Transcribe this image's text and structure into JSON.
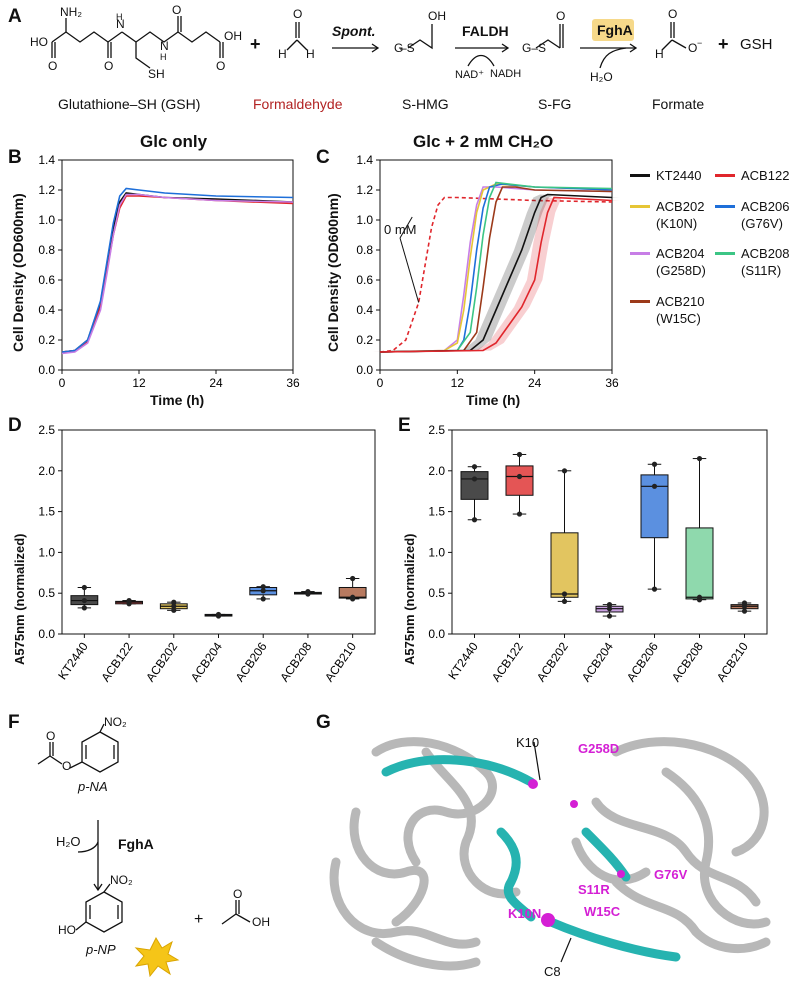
{
  "panels": {
    "A": "A",
    "B": "B",
    "C": "C",
    "D": "D",
    "E": "E",
    "F": "F",
    "G": "G"
  },
  "scheme": {
    "gsh_label": "Glutathione–SH (GSH)",
    "formaldehyde_label": "Formaldehyde",
    "shmg_label": "S-HMG",
    "sfg_label": "S-FG",
    "formate_label": "Formate",
    "spont": "Spont.",
    "faldh": "FALDH",
    "fgha": "FghA",
    "nad": "NAD⁺",
    "nadh": "NADH",
    "h2o": "H₂O",
    "plus": "+",
    "gsh_short": "GSH",
    "formaldehyde_color": "#b22222",
    "fgha_highlight": "#f6d98a"
  },
  "growth_titles": {
    "B": "Glc only",
    "C": "Glc + 2 mM CH₂O"
  },
  "growth_axes": {
    "ylabel": "Cell Density (OD600nm)",
    "xlabel": "Time (h)",
    "zero_mm": "0 mM",
    "yticks": [
      "0.0",
      "0.2",
      "0.4",
      "0.6",
      "0.8",
      "1.0",
      "1.2",
      "1.4"
    ],
    "xticks": [
      "0",
      "12",
      "24",
      "36"
    ]
  },
  "legend": [
    {
      "name": "KT2440",
      "sub": "",
      "color": "#111111"
    },
    {
      "name": "ACB122",
      "sub": "",
      "color": "#e0262c"
    },
    {
      "name": "ACB202",
      "sub": "(K10N)",
      "color": "#e6c535"
    },
    {
      "name": "ACB206",
      "sub": "(G76V)",
      "color": "#1e6fd9"
    },
    {
      "name": "ACB204",
      "sub": "(G258D)",
      "color": "#c77ee6"
    },
    {
      "name": "ACB208",
      "sub": "(S11R)",
      "color": "#3cc585"
    },
    {
      "name": "ACB210",
      "sub": "(W15C)",
      "color": "#9c3a1a"
    }
  ],
  "chart_data": [
    {
      "panel": "B",
      "type": "line",
      "title": "Glc only",
      "xlabel": "Time (h)",
      "ylabel": "Cell Density (OD600nm)",
      "xlim": [
        0,
        36
      ],
      "ylim": [
        0,
        1.4
      ],
      "series": [
        {
          "name": "KT2440",
          "x": [
            0,
            2,
            4,
            6,
            7,
            8,
            9,
            10,
            12,
            16,
            24,
            36
          ],
          "y": [
            0.12,
            0.13,
            0.2,
            0.45,
            0.7,
            0.95,
            1.12,
            1.18,
            1.17,
            1.15,
            1.14,
            1.12
          ]
        },
        {
          "name": "ACB122",
          "x": [
            0,
            2,
            4,
            6,
            7,
            8,
            9,
            10,
            12,
            16,
            24,
            36
          ],
          "y": [
            0.12,
            0.13,
            0.19,
            0.42,
            0.66,
            0.9,
            1.08,
            1.16,
            1.16,
            1.15,
            1.13,
            1.11
          ]
        },
        {
          "name": "ACB206",
          "x": [
            0,
            2,
            4,
            6,
            7,
            8,
            9,
            10,
            12,
            16,
            24,
            36
          ],
          "y": [
            0.12,
            0.13,
            0.2,
            0.46,
            0.72,
            0.98,
            1.16,
            1.21,
            1.2,
            1.18,
            1.16,
            1.15
          ]
        },
        {
          "name": "ACB204",
          "x": [
            0,
            2,
            4,
            6,
            7,
            8,
            9,
            10,
            12,
            16,
            24,
            36
          ],
          "y": [
            0.11,
            0.12,
            0.18,
            0.4,
            0.64,
            0.9,
            1.1,
            1.17,
            1.17,
            1.15,
            1.13,
            1.12
          ]
        }
      ]
    },
    {
      "panel": "C",
      "type": "line",
      "title": "Glc + 2 mM CH₂O",
      "xlabel": "Time (h)",
      "ylabel": "Cell Density (OD600nm)",
      "xlim": [
        0,
        36
      ],
      "ylim": [
        0,
        1.4
      ],
      "series": [
        {
          "name": "0 mM",
          "x": [
            0,
            2,
            4,
            6,
            7,
            8,
            9,
            10,
            12,
            24,
            36
          ],
          "y": [
            0.12,
            0.13,
            0.2,
            0.45,
            0.7,
            0.95,
            1.1,
            1.15,
            1.15,
            1.13,
            1.12
          ]
        },
        {
          "name": "ACB204",
          "x": [
            0,
            10,
            12,
            13,
            14,
            15,
            16,
            18,
            24,
            36
          ],
          "y": [
            0.12,
            0.13,
            0.2,
            0.5,
            0.85,
            1.1,
            1.22,
            1.22,
            1.2,
            1.19
          ]
        },
        {
          "name": "ACB202",
          "x": [
            0,
            10,
            12,
            13,
            14,
            15,
            16,
            18,
            24,
            36
          ],
          "y": [
            0.12,
            0.13,
            0.18,
            0.4,
            0.75,
            1.05,
            1.2,
            1.24,
            1.22,
            1.2
          ]
        },
        {
          "name": "ACB206",
          "x": [
            0,
            12,
            13,
            14,
            15,
            16,
            17,
            19,
            24,
            36
          ],
          "y": [
            0.12,
            0.13,
            0.2,
            0.45,
            0.8,
            1.08,
            1.22,
            1.24,
            1.22,
            1.2
          ]
        },
        {
          "name": "ACB208",
          "x": [
            0,
            12,
            14,
            15,
            16,
            17,
            18,
            20,
            24,
            36
          ],
          "y": [
            0.12,
            0.13,
            0.25,
            0.55,
            0.9,
            1.15,
            1.25,
            1.24,
            1.22,
            1.21
          ]
        },
        {
          "name": "ACB210",
          "x": [
            0,
            13,
            15,
            16,
            17,
            18,
            19,
            21,
            24,
            36
          ],
          "y": [
            0.12,
            0.13,
            0.25,
            0.55,
            0.88,
            1.12,
            1.22,
            1.22,
            1.2,
            1.19
          ]
        },
        {
          "name": "KT2440",
          "x": [
            0,
            14,
            16,
            18,
            20,
            22,
            24,
            25,
            26,
            36
          ],
          "y": [
            0.12,
            0.13,
            0.2,
            0.4,
            0.6,
            0.8,
            1.05,
            1.15,
            1.17,
            1.15
          ]
        },
        {
          "name": "ACB122",
          "x": [
            0,
            16,
            18,
            20,
            22,
            24,
            25,
            26,
            27,
            36
          ],
          "y": [
            0.12,
            0.13,
            0.18,
            0.3,
            0.42,
            0.6,
            0.85,
            1.05,
            1.15,
            1.13
          ]
        }
      ]
    },
    {
      "panel": "D",
      "type": "box",
      "ylabel": "A575nm (normalized)",
      "ylim": [
        0,
        2.5
      ],
      "categories": [
        "KT2440",
        "ACB122",
        "ACB202",
        "ACB204",
        "ACB206",
        "ACB208",
        "ACB210"
      ],
      "boxes": [
        {
          "min": 0.32,
          "q1": 0.36,
          "median": 0.41,
          "q3": 0.47,
          "max": 0.57,
          "points": [
            0.32,
            0.41,
            0.57
          ]
        },
        {
          "min": 0.37,
          "q1": 0.37,
          "median": 0.39,
          "q3": 0.4,
          "max": 0.41,
          "points": [
            0.37,
            0.39,
            0.41
          ]
        },
        {
          "min": 0.29,
          "q1": 0.31,
          "median": 0.34,
          "q3": 0.37,
          "max": 0.39,
          "points": [
            0.29,
            0.34,
            0.39
          ]
        },
        {
          "min": 0.22,
          "q1": 0.22,
          "median": 0.23,
          "q3": 0.24,
          "max": 0.24,
          "points": [
            0.22,
            0.23,
            0.24
          ]
        },
        {
          "min": 0.43,
          "q1": 0.48,
          "median": 0.53,
          "q3": 0.57,
          "max": 0.58,
          "points": [
            0.43,
            0.53,
            0.58
          ]
        },
        {
          "min": 0.49,
          "q1": 0.49,
          "median": 0.5,
          "q3": 0.51,
          "max": 0.52,
          "points": [
            0.49,
            0.5,
            0.52
          ]
        },
        {
          "min": 0.43,
          "q1": 0.44,
          "median": 0.45,
          "q3": 0.57,
          "max": 0.68,
          "points": [
            0.43,
            0.45,
            0.68
          ]
        }
      ]
    },
    {
      "panel": "E",
      "type": "box",
      "ylabel": "A575nm (normalized)",
      "ylim": [
        0,
        2.5
      ],
      "categories": [
        "KT2440",
        "ACB122",
        "ACB202",
        "ACB204",
        "ACB206",
        "ACB208",
        "ACB210"
      ],
      "boxes": [
        {
          "min": 1.4,
          "q1": 1.65,
          "median": 1.9,
          "q3": 1.99,
          "max": 2.05,
          "points": [
            1.4,
            1.9,
            2.05
          ]
        },
        {
          "min": 1.47,
          "q1": 1.7,
          "median": 1.93,
          "q3": 2.06,
          "max": 2.2,
          "points": [
            1.47,
            1.93,
            2.2
          ]
        },
        {
          "min": 0.4,
          "q1": 0.45,
          "median": 0.49,
          "q3": 1.24,
          "max": 2.0,
          "points": [
            0.4,
            0.49,
            2.0
          ]
        },
        {
          "min": 0.22,
          "q1": 0.27,
          "median": 0.31,
          "q3": 0.34,
          "max": 0.36,
          "points": [
            0.22,
            0.31,
            0.36
          ]
        },
        {
          "min": 0.55,
          "q1": 1.18,
          "median": 1.81,
          "q3": 1.95,
          "max": 2.08,
          "points": [
            0.55,
            1.81,
            2.08
          ]
        },
        {
          "min": 0.42,
          "q1": 0.43,
          "median": 0.45,
          "q3": 1.3,
          "max": 2.15,
          "points": [
            0.42,
            0.45,
            2.15
          ]
        },
        {
          "min": 0.28,
          "q1": 0.31,
          "median": 0.34,
          "q3": 0.36,
          "max": 0.38,
          "points": [
            0.28,
            0.34,
            0.38
          ]
        }
      ]
    }
  ],
  "box_axes": {
    "ylabel": "A575nm (normalized)",
    "yticks": [
      "0.0",
      "0.5",
      "1.0",
      "1.5",
      "2.0",
      "2.5"
    ],
    "categories": [
      "KT2440",
      "ACB122",
      "ACB202",
      "ACB204",
      "ACB206",
      "ACB208",
      "ACB210"
    ],
    "box_colors": [
      "#4a4a4a",
      "#e45555",
      "#e2c560",
      "#c9a0e0",
      "#5b90e0",
      "#8fd9ad",
      "#b87a60"
    ]
  },
  "assay": {
    "pna": "p-NA",
    "pnp": "p-NP",
    "h2o": "H₂O",
    "enzyme": "FghA",
    "no2": "NO₂",
    "ho": "HO",
    "oh": "OH",
    "plus": "+"
  },
  "structure": {
    "labels": [
      "K10",
      "G258D",
      "G76V",
      "S11R",
      "K10N",
      "W15C",
      "C8"
    ],
    "mutation_color": "#d41fd4",
    "helix_color": "#26b3b0"
  }
}
